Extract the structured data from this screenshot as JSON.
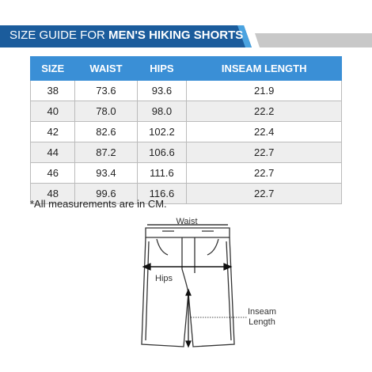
{
  "header": {
    "title_prefix": "SIZE GUIDE FOR",
    "title_emphasis": "MEN'S HIKING SHORTS"
  },
  "table": {
    "columns": [
      "SIZE",
      "WAIST",
      "HIPS",
      "INSEAM LENGTH"
    ],
    "rows": [
      [
        "38",
        "73.6",
        "93.6",
        "21.9"
      ],
      [
        "40",
        "78.0",
        "98.0",
        "22.2"
      ],
      [
        "42",
        "82.6",
        "102.2",
        "22.4"
      ],
      [
        "44",
        "87.2",
        "106.6",
        "22.7"
      ],
      [
        "46",
        "93.4",
        "111.6",
        "22.7"
      ],
      [
        "48",
        "99.6",
        "116.6",
        "22.7"
      ]
    ]
  },
  "note": "*All measurements are in CM.",
  "diagram": {
    "waist_label": "Waist",
    "hips_label": "Hips",
    "inseam_label": [
      "Inseam",
      "Length"
    ]
  }
}
